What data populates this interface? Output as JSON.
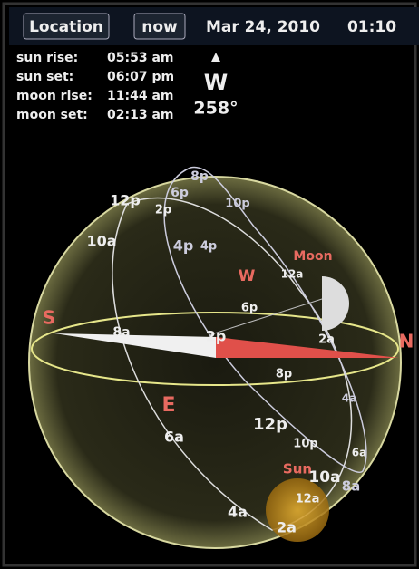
{
  "header": {
    "location_button": "Location",
    "now_button": "now",
    "date": "Mar 24, 2010",
    "time": "01:10"
  },
  "info": {
    "rows": [
      [
        "sun rise:",
        "05:53 am"
      ],
      [
        "sun set:",
        "06:07 pm"
      ],
      [
        "moon rise:",
        "11:44 am"
      ],
      [
        "moon set:",
        "02:13 am"
      ]
    ]
  },
  "heading": {
    "direction": "W",
    "degrees": "258°"
  },
  "sphere": {
    "cardinals": {
      "south": "S",
      "north": "N",
      "east": "E",
      "west": "W"
    },
    "bodies": {
      "moon": "Moon",
      "sun": "Sun"
    },
    "hour_labels": [
      "8p",
      "6p",
      "10p",
      "12p",
      "2p",
      "10a",
      "4p",
      "4p",
      "12a",
      "6p",
      "8a",
      "2p",
      "2a",
      "8p",
      "4a",
      "6a",
      "12p",
      "10p",
      "6a",
      "10a",
      "8a",
      "12a",
      "4a",
      "2a"
    ]
  }
}
